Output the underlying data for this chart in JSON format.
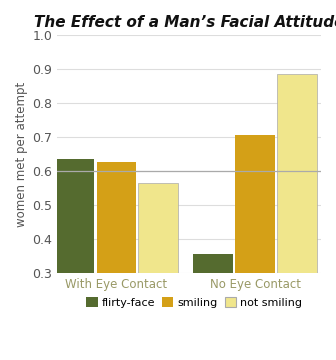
{
  "title": "The Effect of a Man’s Facial Attitude",
  "ylabel": "women met per attempt",
  "categories": [
    "With Eye Contact",
    "No Eye Contact"
  ],
  "series": {
    "flirty-face": [
      0.635,
      0.355
    ],
    "smiling": [
      0.625,
      0.705
    ],
    "not smiling": [
      0.565,
      0.885
    ]
  },
  "colors": {
    "flirty-face": "#556B2F",
    "smiling": "#D4A017",
    "not smiling": "#F0E68C"
  },
  "ylim": [
    0.3,
    1.0
  ],
  "yticks": [
    0.3,
    0.4,
    0.5,
    0.6,
    0.7,
    0.8,
    0.9,
    1.0
  ],
  "background_color": "#FFFFFF",
  "plot_bg_color": "#FFFFFF",
  "grid_color": "#DDDDDD",
  "bar_width": 0.18,
  "title_fontsize": 11,
  "axis_label_fontsize": 8.5,
  "tick_fontsize": 9,
  "legend_fontsize": 8,
  "xticklabel_color": "#999966",
  "yticklabel_color": "#555555",
  "axis_label_color": "#555555",
  "title_color": "#111111",
  "hline_y": 0.6,
  "hline_color": "#AAAAAA",
  "group_centers": [
    0.32,
    0.95
  ],
  "xlim": [
    0.05,
    1.25
  ]
}
